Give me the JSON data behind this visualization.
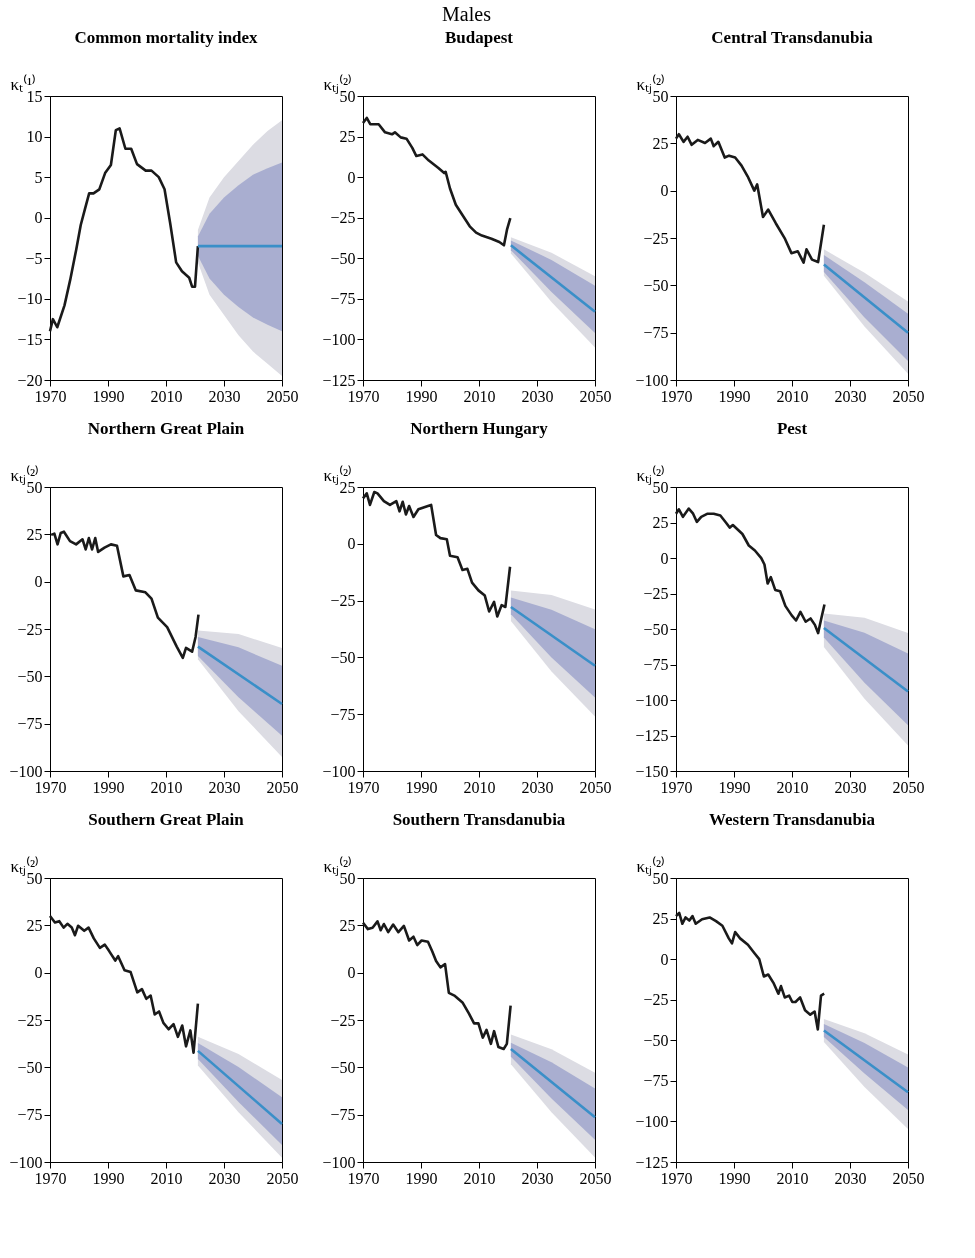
{
  "chart_data": [
    {
      "type": "other",
      "title": "Males"
    },
    {
      "type": "line",
      "title": "Common mortality index",
      "ylabel": "κₜ⁽¹⁾",
      "xlim": [
        1970,
        2050
      ],
      "xticks": [
        1970,
        1990,
        2010,
        2030,
        2050
      ],
      "ylim": [
        -20,
        15
      ],
      "yticks": [
        -20,
        -15,
        -10,
        -5,
        0,
        5,
        10,
        15
      ],
      "series": [
        {
          "type": "line",
          "color": "#1a1a1a",
          "x": [
            1970,
            1971,
            1972.5,
            1975,
            1977,
            1979,
            1980.6,
            1982,
            1983.5,
            1985,
            1987,
            1989,
            1991,
            1992.7,
            1994,
            1996,
            1998,
            2000,
            2003,
            2005,
            2007.5,
            2009.5,
            2011.5,
            2013.5,
            2015.5,
            2018,
            2019,
            2020,
            2021
          ],
          "values": [
            -14,
            -12.5,
            -13.5,
            -10.8,
            -7.6,
            -4,
            -0.9,
            1,
            3,
            3,
            3.5,
            5.5,
            6.5,
            10.8,
            11,
            8.5,
            8.5,
            6.6,
            5.8,
            5.8,
            5,
            3.5,
            -0.8,
            -5.5,
            -6.6,
            -7.4,
            -8.5,
            -8.5,
            -3.5
          ]
        },
        {
          "type": "area",
          "color": "#dcdce3",
          "x": [
            2021,
            2025,
            2030,
            2035,
            2040,
            2045,
            2050
          ],
          "values": [
            null,
            null,
            null,
            null,
            null,
            null,
            null
          ],
          "lower": [
            -5.5,
            -9.5,
            -12,
            -14.5,
            -16.5,
            -18,
            -19.5
          ],
          "upper": [
            -1.5,
            2.5,
            5,
            7,
            9,
            10.7,
            12
          ]
        },
        {
          "type": "area",
          "color": "#a9aed0",
          "x": [
            2021,
            2025,
            2030,
            2035,
            2040,
            2045,
            2050
          ],
          "values": [
            null,
            null,
            null,
            null,
            null,
            null,
            null
          ],
          "lower": [
            -4.7,
            -7.5,
            -9.5,
            -11,
            -12.3,
            -13.2,
            -14
          ],
          "upper": [
            -2.3,
            0.5,
            2.5,
            4,
            5.3,
            6.1,
            6.8
          ]
        },
        {
          "type": "line",
          "color": "#3a8fc8",
          "x": [
            2021,
            2050
          ],
          "values": [
            -3.5,
            -3.5
          ]
        }
      ]
    },
    {
      "type": "line",
      "title": "Budapest",
      "ylabel": "κₜⱼ⁽²⁾",
      "xlim": [
        1970,
        2050
      ],
      "xticks": [
        1970,
        1990,
        2010,
        2030,
        2050
      ],
      "ylim": [
        -125,
        50
      ],
      "yticks": [
        -125,
        -100,
        -75,
        -50,
        -25,
        0,
        25,
        50
      ],
      "series": [
        {
          "type": "line",
          "color": "#1a1a1a",
          "x": [
            1970,
            1971.3,
            1972.5,
            1975.4,
            1977.6,
            1980,
            1981,
            1983,
            1985,
            1987,
            1988.4,
            1990.5,
            1992.7,
            1996,
            1998,
            1998.5,
            2000,
            2002,
            2004,
            2006.8,
            2009,
            2011,
            2014.3,
            2017,
            2018.6,
            2019.7,
            2020.8
          ],
          "values": [
            33.4,
            36.5,
            32.6,
            32.6,
            27.6,
            26.4,
            27.6,
            24.5,
            23.7,
            18,
            13,
            14,
            10.2,
            5.6,
            2.5,
            3.3,
            -7,
            -17,
            -22.6,
            -30.3,
            -34.2,
            -36,
            -38,
            -40,
            -42,
            -32,
            -25.3
          ]
        },
        {
          "type": "area",
          "color": "#dcdce3",
          "x": [
            2021,
            2035,
            2050
          ],
          "values": [
            null,
            null,
            null
          ],
          "lower": [
            -47,
            -77,
            -105
          ],
          "upper": [
            -37,
            -46.6,
            -61
          ]
        },
        {
          "type": "area",
          "color": "#a9aed0",
          "x": [
            2021,
            2035,
            2050
          ],
          "values": [
            null,
            null,
            null
          ],
          "lower": [
            -45,
            -70.8,
            -96
          ],
          "upper": [
            -39,
            -51,
            -67
          ]
        },
        {
          "type": "line",
          "color": "#3a8fc8",
          "x": [
            2021,
            2050
          ],
          "values": [
            -42,
            -83
          ]
        }
      ]
    },
    {
      "type": "line",
      "title": "Central Transdanubia",
      "ylabel": "κₜⱼ⁽²⁾",
      "xlim": [
        1970,
        2050
      ],
      "xticks": [
        1970,
        1990,
        2010,
        2030,
        2050
      ],
      "ylim": [
        -100,
        50
      ],
      "yticks": [
        -100,
        -75,
        -50,
        -25,
        0,
        25,
        50
      ],
      "series": [
        {
          "type": "line",
          "color": "#1a1a1a",
          "x": [
            1970,
            1971,
            1972.6,
            1974,
            1975.4,
            1977.5,
            1980,
            1982,
            1983,
            1984.6,
            1986.8,
            1988.3,
            1990.4,
            1992.6,
            1994.7,
            1997,
            1998,
            2000,
            2001.8,
            2004.4,
            2007.6,
            2009.8,
            2012,
            2014,
            2015,
            2016.9,
            2019,
            2021
          ],
          "values": [
            27.5,
            29.8,
            25.8,
            28.5,
            24.2,
            26.8,
            25.2,
            27.5,
            23.5,
            25.8,
            17.5,
            18.5,
            17.5,
            13.2,
            7.6,
            0,
            3.3,
            -13.9,
            -10,
            -17.2,
            -25.5,
            -33,
            -32,
            -38,
            -31,
            -36.4,
            -37.7,
            -18
          ]
        },
        {
          "type": "area",
          "color": "#dcdce3",
          "x": [
            2021,
            2035,
            2050
          ],
          "values": [
            null,
            null,
            null
          ],
          "lower": [
            -45,
            -71.8,
            -96.7
          ],
          "upper": [
            -31,
            -43.4,
            -58.6
          ]
        },
        {
          "type": "area",
          "color": "#a9aed0",
          "x": [
            2021,
            2035,
            2050
          ],
          "values": [
            null,
            null,
            null
          ],
          "lower": [
            -43,
            -67,
            -90
          ],
          "upper": [
            -34,
            -48.4,
            -65
          ]
        },
        {
          "type": "line",
          "color": "#3a8fc8",
          "x": [
            2021,
            2050
          ],
          "values": [
            -39,
            -75
          ]
        }
      ]
    },
    {
      "type": "line",
      "title": "Northern Great Plain",
      "ylabel": "κₜⱼ⁽²⁾",
      "xlim": [
        1970,
        2050
      ],
      "xticks": [
        1970,
        1990,
        2010,
        2030,
        2050
      ],
      "ylim": [
        -100,
        50
      ],
      "yticks": [
        -100,
        -75,
        -50,
        -25,
        0,
        25,
        50
      ],
      "series": [
        {
          "type": "line",
          "color": "#1a1a1a",
          "x": [
            1970.4,
            1971.5,
            1972.6,
            1973.7,
            1974.8,
            1976.9,
            1979,
            1981.2,
            1982.3,
            1983.4,
            1984.5,
            1985.6,
            1986.6,
            1988.8,
            1991,
            1993.1,
            1995.3,
            1997.4,
            1999.6,
            2002.9,
            2005,
            2007.2,
            2010.4,
            2013.7,
            2015.8,
            2016.9,
            2019,
            2020.2,
            2021.2
          ],
          "values": [
            24.7,
            25.4,
            19.7,
            25.7,
            26.4,
            21.4,
            19.7,
            22.4,
            17,
            23,
            17,
            23,
            15.7,
            18,
            19.7,
            19,
            2.8,
            3.5,
            -4.6,
            -5.6,
            -9,
            -19,
            -24,
            -34.3,
            -40.3,
            -35,
            -37,
            -29.2,
            -17.4
          ]
        },
        {
          "type": "area",
          "color": "#dcdce3",
          "x": [
            2021,
            2035,
            2050
          ],
          "values": [
            null,
            null,
            null
          ],
          "lower": [
            -41,
            -68.4,
            -92.6
          ],
          "upper": [
            -25.8,
            -27.7,
            -35
          ]
        },
        {
          "type": "area",
          "color": "#a9aed0",
          "x": [
            2021,
            2035,
            2050
          ],
          "values": [
            null,
            null,
            null
          ],
          "lower": [
            -39.3,
            -61,
            -81.4
          ],
          "upper": [
            -29.2,
            -34.7,
            -44.4
          ]
        },
        {
          "type": "line",
          "color": "#3a8fc8",
          "x": [
            2021,
            2050
          ],
          "values": [
            -34.3,
            -64.6
          ]
        }
      ]
    },
    {
      "type": "line",
      "title": "Northern Hungary",
      "ylabel": "κₜⱼ⁽²⁾",
      "xlim": [
        1970,
        2050
      ],
      "xticks": [
        1970,
        1990,
        2010,
        2030,
        2050
      ],
      "ylim": [
        -100,
        25
      ],
      "yticks": [
        -100,
        -75,
        -50,
        -25,
        0,
        25
      ],
      "series": [
        {
          "type": "line",
          "color": "#1a1a1a",
          "x": [
            1970,
            1971.3,
            1972.4,
            1973.9,
            1975,
            1977.2,
            1979.3,
            1981.5,
            1982.6,
            1983.7,
            1984.8,
            1985.9,
            1987.4,
            1989.1,
            1992.4,
            1993.5,
            1995.2,
            1996.7,
            1998.9,
            2000,
            2002.6,
            2004.3,
            2006,
            2007.6,
            2009.8,
            2012,
            2013.5,
            2015.2,
            2016.3,
            2017.8,
            2019.1,
            2020.7
          ],
          "values": [
            20,
            22.2,
            17.1,
            22.8,
            22.2,
            18.8,
            17.1,
            18.8,
            14.3,
            18.5,
            12.9,
            16.6,
            11.8,
            15.2,
            16.6,
            17.1,
            3.9,
            2.5,
            2,
            -5.3,
            -5.9,
            -11.5,
            -11,
            -17.1,
            -20.5,
            -22.8,
            -29.8,
            -25.6,
            -32,
            -27,
            -27.8,
            -10.1
          ]
        },
        {
          "type": "area",
          "color": "#dcdce3",
          "x": [
            2021,
            2035,
            2050
          ],
          "values": [
            null,
            null,
            null
          ],
          "lower": [
            -34,
            -56.2,
            -76
          ],
          "upper": [
            -20.5,
            -22.5,
            -28.9
          ]
        },
        {
          "type": "area",
          "color": "#a9aed0",
          "x": [
            2021,
            2035,
            2050
          ],
          "values": [
            null,
            null,
            null
          ],
          "lower": [
            -31,
            -50,
            -67.7
          ],
          "upper": [
            -23.6,
            -29,
            -37.6
          ]
        },
        {
          "type": "line",
          "color": "#3a8fc8",
          "x": [
            2021,
            2050
          ],
          "values": [
            -27.8,
            -53.7
          ]
        }
      ]
    },
    {
      "type": "line",
      "title": "Pest",
      "ylabel": "κₜⱼ⁽²⁾",
      "xlim": [
        1970,
        2050
      ],
      "xticks": [
        1970,
        1990,
        2010,
        2030,
        2050
      ],
      "ylim": [
        -150,
        50
      ],
      "yticks": [
        -150,
        -125,
        -100,
        -75,
        -50,
        -25,
        0,
        25,
        50
      ],
      "series": [
        {
          "type": "line",
          "color": "#1a1a1a",
          "x": [
            1970,
            1971,
            1972.4,
            1974.4,
            1975.9,
            1977.2,
            1978.7,
            1980.9,
            1983,
            1985.3,
            1987.4,
            1988.5,
            1989.6,
            1992.9,
            1995.1,
            1997.2,
            1999.4,
            2000.5,
            2001.6,
            2002.7,
            2004.2,
            2005.9,
            2007.7,
            2009.9,
            2011.4,
            2012.9,
            2014.7,
            2016.4,
            2017.9,
            2019,
            2020.1,
            2021.2
          ],
          "values": [
            31.2,
            34.3,
            29,
            34.8,
            31.2,
            25.4,
            29,
            31.2,
            31.2,
            29.9,
            24.5,
            21.4,
            23.2,
            16.9,
            8.8,
            5.3,
            -0.1,
            -4.6,
            -18,
            -13.5,
            -22.5,
            -23.4,
            -33.7,
            -40.4,
            -44,
            -38,
            -44.9,
            -42.6,
            -47.1,
            -52.9,
            -42.6,
            -32.8
          ]
        },
        {
          "type": "area",
          "color": "#dcdce3",
          "x": [
            2021,
            2035,
            2050
          ],
          "values": [
            null,
            null,
            null
          ],
          "lower": [
            -62.7,
            -99.1,
            -132
          ],
          "upper": [
            -39,
            -42.1,
            -52.9
          ]
        },
        {
          "type": "area",
          "color": "#a9aed0",
          "x": [
            2021,
            2035,
            2050
          ],
          "values": [
            null,
            null,
            null
          ],
          "lower": [
            -56,
            -87.9,
            -117.8
          ],
          "upper": [
            -44,
            -52.7,
            -67.2
          ]
        },
        {
          "type": "line",
          "color": "#3a8fc8",
          "x": [
            2021,
            2050
          ],
          "values": [
            -49.3,
            -94
          ]
        }
      ]
    },
    {
      "type": "line",
      "title": "Southern Great Plain",
      "ylabel": "κₜⱼ⁽²⁾",
      "xlim": [
        1970,
        2050
      ],
      "xticks": [
        1970,
        1990,
        2010,
        2030,
        2050
      ],
      "ylim": [
        -100,
        50
      ],
      "yticks": [
        -100,
        -75,
        -50,
        -25,
        0,
        25,
        50
      ],
      "series": [
        {
          "type": "line",
          "color": "#1a1a1a",
          "x": [
            1970,
            1971.7,
            1973.2,
            1974.7,
            1976,
            1977.5,
            1978.6,
            1979.7,
            1981.8,
            1983.3,
            1985.1,
            1987.2,
            1988.9,
            1990.4,
            1992.5,
            1993.5,
            1995.7,
            1997.8,
            2000.1,
            2001.7,
            2003.2,
            2004.7,
            2006.1,
            2007.6,
            2009.1,
            2010.9,
            2012.6,
            2014.1,
            2015.6,
            2016.9,
            2018.4,
            2019.5,
            2021
          ],
          "values": [
            29.9,
            26.5,
            27.2,
            23.8,
            25.8,
            23.8,
            19.8,
            24.8,
            22.1,
            23.8,
            18.1,
            13.1,
            14.8,
            11.4,
            6.4,
            8.7,
            1.3,
            0.3,
            -10.4,
            -8.7,
            -13.8,
            -12.1,
            -22.1,
            -20.5,
            -26.5,
            -29.9,
            -27.2,
            -33.9,
            -27.9,
            -38.9,
            -30.5,
            -42.3,
            -16.4
          ]
        },
        {
          "type": "area",
          "color": "#dcdce3",
          "x": [
            2021,
            2035,
            2050
          ],
          "values": [
            null,
            null,
            null
          ],
          "lower": [
            -49,
            -73.7,
            -97.7
          ],
          "upper": [
            -33.9,
            -43,
            -56.7
          ]
        },
        {
          "type": "area",
          "color": "#a9aed0",
          "x": [
            2021,
            2035,
            2050
          ],
          "values": [
            null,
            null,
            null
          ],
          "lower": [
            -45.6,
            -68.3,
            -91
          ],
          "upper": [
            -37.2,
            -49.8,
            -65.8
          ]
        },
        {
          "type": "line",
          "color": "#3a8fc8",
          "x": [
            2021,
            2050
          ],
          "values": [
            -41.3,
            -79.9
          ]
        }
      ]
    },
    {
      "type": "line",
      "title": "Southern Transdanubia",
      "ylabel": "κₜⱼ⁽²⁾",
      "xlim": [
        1970,
        2050
      ],
      "xticks": [
        1970,
        1990,
        2010,
        2030,
        2050
      ],
      "ylim": [
        -100,
        50
      ],
      "yticks": [
        -100,
        -75,
        -50,
        -25,
        0,
        25,
        50
      ],
      "series": [
        {
          "type": "line",
          "color": "#1a1a1a",
          "x": [
            1970,
            1971.7,
            1973.3,
            1975,
            1976.1,
            1977.2,
            1978.7,
            1980.4,
            1982.2,
            1984.1,
            1985.9,
            1987.4,
            1988.7,
            1990.2,
            1992.4,
            1993.9,
            1995.2,
            1996.7,
            1998.3,
            1999.6,
            2001.7,
            2004.3,
            2006.5,
            2008.3,
            2009.8,
            2011.3,
            2012.6,
            2014.1,
            2015.2,
            2016.7,
            2018.5,
            2019.6,
            2020.9
          ],
          "values": [
            26.4,
            23,
            23.7,
            27.1,
            22.4,
            25.7,
            21.4,
            25.4,
            21.4,
            24.7,
            17,
            19,
            14.6,
            17,
            16.3,
            11.2,
            6.2,
            2.8,
            4.5,
            -10.7,
            -12.3,
            -15.7,
            -21.5,
            -26.8,
            -26.8,
            -34.3,
            -30.2,
            -37.6,
            -30.9,
            -39.3,
            -40.3,
            -37.6,
            -17.4
          ]
        },
        {
          "type": "area",
          "color": "#dcdce3",
          "x": [
            2021,
            2035,
            2050
          ],
          "values": [
            null,
            null,
            null
          ],
          "lower": [
            -48.4,
            -73.7,
            -97.6
          ],
          "upper": [
            -32.6,
            -40.5,
            -52.8
          ]
        },
        {
          "type": "area",
          "color": "#a9aed0",
          "x": [
            2021,
            2035,
            2050
          ],
          "values": [
            null,
            null,
            null
          ],
          "lower": [
            -44.4,
            -66.4,
            -88.2
          ],
          "upper": [
            -37,
            -47.3,
            -61.2
          ]
        },
        {
          "type": "line",
          "color": "#3a8fc8",
          "x": [
            2021,
            2050
          ],
          "values": [
            -40.3,
            -76.4
          ]
        }
      ]
    },
    {
      "type": "line",
      "title": "Western Transdanubia",
      "ylabel": "κₜⱼ⁽²⁾",
      "xlim": [
        1970,
        2050
      ],
      "xticks": [
        1970,
        1990,
        2010,
        2030,
        2050
      ],
      "ylim": [
        -125,
        50
      ],
      "yticks": [
        -125,
        -100,
        -75,
        -50,
        -25,
        0,
        25,
        50
      ],
      "series": [
        {
          "type": "line",
          "color": "#1a1a1a",
          "x": [
            1970,
            1971.1,
            1972.2,
            1973.3,
            1974.6,
            1975.7,
            1976.8,
            1979,
            1981.6,
            1983.8,
            1986,
            1988.2,
            1989.3,
            1990.4,
            1992.1,
            1994.8,
            1997,
            1998.7,
            2000.3,
            2001.8,
            2003.6,
            2005.3,
            2006.2,
            2007.5,
            2009,
            2010.1,
            2011.2,
            2012.8,
            2014.5,
            2016.3,
            2017.8,
            2018.9,
            2020,
            2021.1
          ],
          "values": [
            26.5,
            28.5,
            21.8,
            25.7,
            23.8,
            26.5,
            21.8,
            24.6,
            25.7,
            23.4,
            20.6,
            12.8,
            9.7,
            16.7,
            12.8,
            8.9,
            3.8,
            0,
            -10.7,
            -9.5,
            -14.6,
            -21.3,
            -16.6,
            -23.6,
            -22.5,
            -26.4,
            -26.4,
            -23.6,
            -31.5,
            -34.2,
            -32.3,
            -43.3,
            -22.5,
            -21.3
          ]
        },
        {
          "type": "area",
          "color": "#dcdce3",
          "x": [
            2021,
            2035,
            2050
          ],
          "values": [
            null,
            null,
            null
          ],
          "lower": [
            -51,
            -78.8,
            -104.6
          ],
          "upper": [
            -36.9,
            -45.6,
            -58.8
          ]
        },
        {
          "type": "area",
          "color": "#a9aed0",
          "x": [
            2021,
            2035,
            2050
          ],
          "values": [
            null,
            null,
            null
          ],
          "lower": [
            -47.9,
            -70.5,
            -92.9
          ],
          "upper": [
            -40,
            -51.6,
            -66.7
          ]
        },
        {
          "type": "line",
          "color": "#3a8fc8",
          "x": [
            2021,
            2050
          ],
          "values": [
            -44,
            -82
          ]
        }
      ]
    }
  ]
}
